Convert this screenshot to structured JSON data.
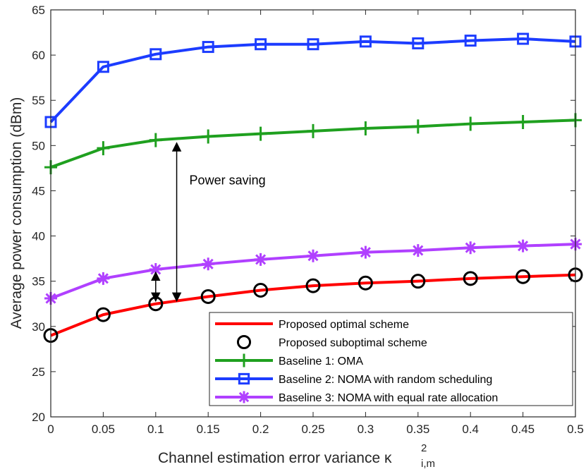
{
  "chart_data": {
    "type": "line",
    "xlabel": "Channel estimation error variance κ",
    "xlabel_sup": "2",
    "xlabel_sub": "i,m",
    "ylabel": "Average power consumption (dBm)",
    "xlim": [
      0,
      0.5
    ],
    "ylim": [
      20,
      65
    ],
    "x_ticks": [
      "0",
      "0.05",
      "0.1",
      "0.15",
      "0.2",
      "0.25",
      "0.3",
      "0.35",
      "0.4",
      "0.45",
      "0.5"
    ],
    "y_ticks": [
      "20",
      "25",
      "30",
      "35",
      "40",
      "45",
      "50",
      "55",
      "60",
      "65"
    ],
    "x": [
      0,
      0.05,
      0.1,
      0.15,
      0.2,
      0.25,
      0.3,
      0.35,
      0.4,
      0.45,
      0.5
    ],
    "series": [
      {
        "name": "Proposed optimal scheme",
        "color": "#ff0000",
        "marker": "none",
        "line": true,
        "values": [
          29.0,
          31.3,
          32.5,
          33.3,
          34.0,
          34.5,
          34.8,
          35.0,
          35.3,
          35.5,
          35.7
        ]
      },
      {
        "name": "Proposed suboptimal scheme",
        "color": "#000000",
        "marker": "circle",
        "line": false,
        "values": [
          29.0,
          31.3,
          32.5,
          33.3,
          34.0,
          34.5,
          34.8,
          35.0,
          35.3,
          35.5,
          35.7
        ]
      },
      {
        "name": "Baseline 1: OMA",
        "color": "#1fa01f",
        "marker": "plus",
        "line": true,
        "values": [
          47.6,
          49.7,
          50.6,
          51.0,
          51.3,
          51.6,
          51.9,
          52.1,
          52.4,
          52.6,
          52.8
        ]
      },
      {
        "name": "Baseline 2: NOMA with random scheduling",
        "color": "#1c3cff",
        "marker": "square",
        "line": true,
        "values": [
          52.6,
          58.7,
          60.1,
          60.9,
          61.2,
          61.2,
          61.5,
          61.3,
          61.6,
          61.8,
          61.5
        ]
      },
      {
        "name": "Baseline 3: NOMA with equal rate allocation",
        "color": "#b040ff",
        "marker": "star",
        "line": true,
        "values": [
          33.1,
          35.3,
          36.3,
          36.9,
          37.4,
          37.8,
          38.2,
          38.4,
          38.7,
          38.9,
          39.1
        ]
      }
    ],
    "annotations": [
      {
        "text": "Power saving",
        "arrow_x": 0.12,
        "arrow_from": 50.6,
        "arrow_to": 32.5
      },
      {
        "text": "",
        "arrow_x": 0.1,
        "arrow_from": 36.3,
        "arrow_to": 32.5
      }
    ],
    "legend_position": "bottom-right",
    "grid": false
  }
}
